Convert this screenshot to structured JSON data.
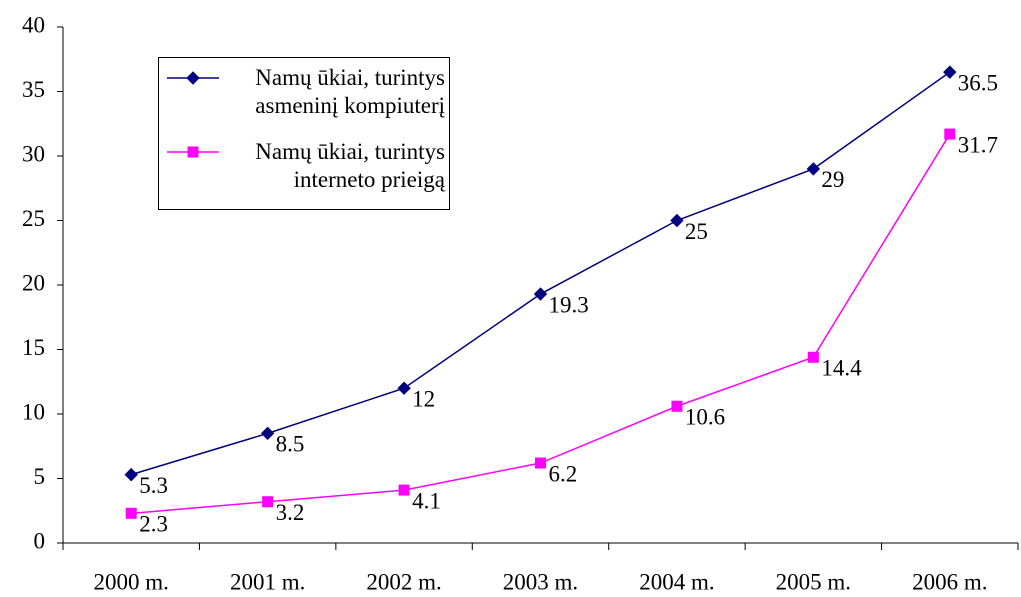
{
  "chart_data": {
    "type": "line",
    "categories": [
      "2000 m.",
      "2001 m.",
      "2002 m.",
      "2003 m.",
      "2004 m.",
      "2005 m.",
      "2006 m."
    ],
    "series": [
      {
        "name": "Namų ūkiai, turintys asmeninį kompiuterį",
        "color": "#000080",
        "marker": "diamond",
        "values": [
          5.3,
          8.5,
          12,
          19.3,
          25,
          29,
          36.5
        ]
      },
      {
        "name": "Namų ūkiai, turintys interneto prieigą",
        "color": "#ff00ff",
        "marker": "square",
        "values": [
          2.3,
          3.2,
          4.1,
          6.2,
          10.6,
          14.4,
          31.7
        ]
      }
    ],
    "ylim": [
      0,
      40
    ],
    "yticks": [
      0,
      5,
      10,
      15,
      20,
      25,
      30,
      35,
      40
    ],
    "legend": "upper left",
    "grid": false
  }
}
